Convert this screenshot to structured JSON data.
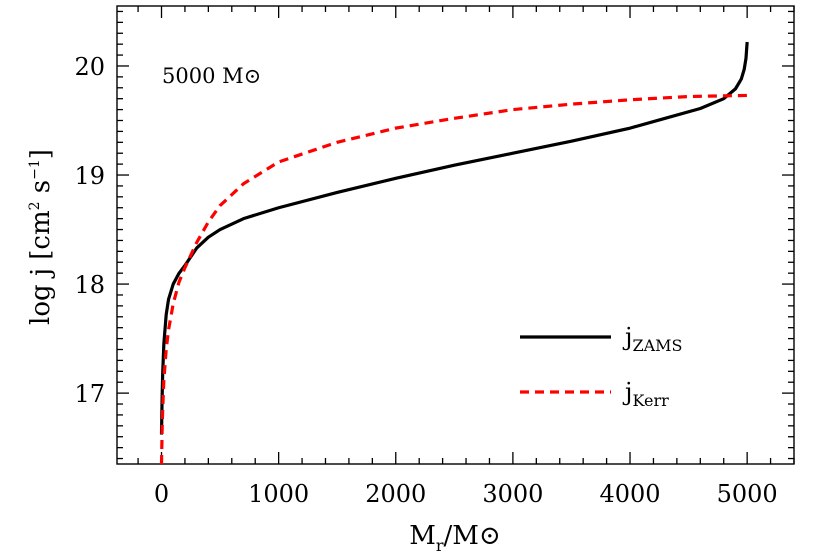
{
  "chart_data": {
    "type": "line",
    "annotation": "5000 M⊙",
    "xlabel": {
      "main": "M",
      "sub": "r",
      "rest": "/M⊙"
    },
    "ylabel": {
      "prefix": "log j [cm",
      "sup1": "2",
      "mid": " s",
      "sup2": "−1",
      "suffix": "]"
    },
    "xlim": [
      -380,
      5400
    ],
    "ylim": [
      16.35,
      20.55
    ],
    "xticks": [
      0,
      1000,
      2000,
      3000,
      4000,
      5000
    ],
    "xtick_labels": [
      "0",
      "1000",
      "2000",
      "3000",
      "4000",
      "5000"
    ],
    "yticks": [
      17,
      18,
      19,
      20
    ],
    "ytick_labels": [
      "17",
      "18",
      "19",
      "20"
    ],
    "grid": false,
    "legend_placement": "bottom-right",
    "series": [
      {
        "name_main": "j",
        "name_sub": "ZAMS",
        "color": "#000000",
        "style": "solid",
        "x": [
          0,
          5,
          10,
          20,
          40,
          60,
          100,
          150,
          200,
          300,
          400,
          500,
          700,
          1000,
          1500,
          2000,
          2500,
          3000,
          3500,
          4000,
          4300,
          4600,
          4800,
          4900,
          4950,
          4975,
          4990,
          5000
        ],
        "y": [
          16.62,
          16.95,
          17.18,
          17.45,
          17.72,
          17.86,
          18.0,
          18.1,
          18.17,
          18.33,
          18.43,
          18.5,
          18.6,
          18.7,
          18.84,
          18.97,
          19.09,
          19.2,
          19.31,
          19.43,
          19.52,
          19.61,
          19.7,
          19.79,
          19.88,
          19.97,
          20.07,
          20.22
        ]
      },
      {
        "name_main": "j",
        "name_sub": "Kerr",
        "color": "#ff0000",
        "style": "dashed",
        "x": [
          0,
          5,
          10,
          20,
          40,
          60,
          100,
          150,
          200,
          300,
          400,
          500,
          700,
          1000,
          1500,
          2000,
          2500,
          3000,
          3500,
          4000,
          4500,
          5000
        ],
        "y": [
          16.35,
          16.65,
          16.85,
          17.12,
          17.4,
          17.58,
          17.82,
          18.02,
          18.15,
          18.38,
          18.57,
          18.72,
          18.92,
          19.12,
          19.3,
          19.43,
          19.52,
          19.6,
          19.65,
          19.69,
          19.72,
          19.73
        ]
      }
    ]
  }
}
